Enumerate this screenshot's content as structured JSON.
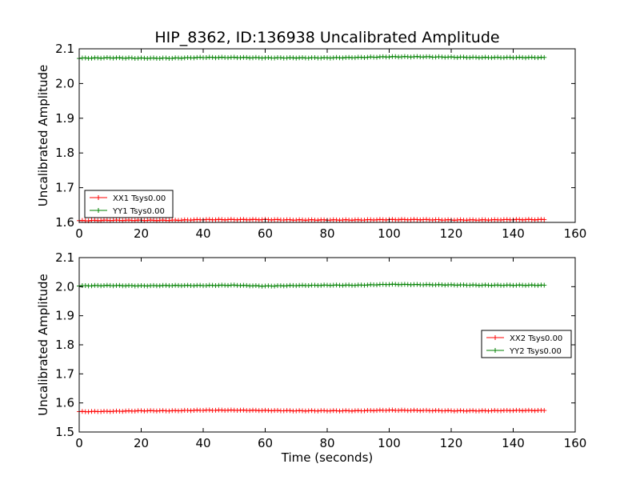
{
  "figure": {
    "title": "HIP_8362, ID:136938 Uncalibrated Amplitude",
    "xlabel": "Time (seconds)"
  },
  "colors": {
    "xx": "#ff0000",
    "yy": "#008000",
    "axes": "#000000",
    "background": "#ffffff"
  },
  "chart_data": [
    {
      "type": "line",
      "title": "HIP_8362, ID:136938 Uncalibrated Amplitude",
      "xlabel": "",
      "ylabel": "Uncalibrated Amplitude",
      "xlim": [
        0,
        160
      ],
      "ylim": [
        1.6,
        2.1
      ],
      "xticks": [
        "0",
        "20",
        "40",
        "60",
        "80",
        "100",
        "120",
        "140",
        "160"
      ],
      "yticks": [
        "1.6",
        "1.7",
        "1.8",
        "1.9",
        "2.0",
        "2.1"
      ],
      "grid": false,
      "marker": "+",
      "legend_position": "lower-left",
      "legend": [
        "XX1 Tsys0.00",
        "YY1 Tsys0.00"
      ],
      "x": [
        0,
        10,
        20,
        30,
        40,
        50,
        60,
        70,
        80,
        90,
        100,
        110,
        120,
        130,
        140,
        150
      ],
      "series": [
        {
          "name": "XX1 Tsys0.00",
          "color": "#ff0000",
          "values": [
            1.605,
            1.606,
            1.606,
            1.606,
            1.608,
            1.608,
            1.608,
            1.607,
            1.607,
            1.607,
            1.608,
            1.608,
            1.607,
            1.607,
            1.608,
            1.608
          ]
        },
        {
          "name": "YY1 Tsys0.00",
          "color": "#008000",
          "values": [
            2.073,
            2.074,
            2.073,
            2.073,
            2.075,
            2.075,
            2.074,
            2.074,
            2.074,
            2.075,
            2.077,
            2.077,
            2.076,
            2.075,
            2.075,
            2.075
          ]
        }
      ]
    },
    {
      "type": "line",
      "title": "",
      "xlabel": "Time (seconds)",
      "ylabel": "Uncalibrated Amplitude",
      "xlim": [
        0,
        160
      ],
      "ylim": [
        1.5,
        2.1
      ],
      "xticks": [
        "0",
        "20",
        "40",
        "60",
        "80",
        "100",
        "120",
        "140",
        "160"
      ],
      "yticks": [
        "1.5",
        "1.6",
        "1.7",
        "1.8",
        "1.9",
        "2.0",
        "2.1"
      ],
      "grid": false,
      "marker": "+",
      "legend_position": "center-right",
      "legend": [
        "XX2 Tsys0.00",
        "YY2 Tsys0.00"
      ],
      "x": [
        0,
        10,
        20,
        30,
        40,
        50,
        60,
        70,
        80,
        90,
        100,
        110,
        120,
        130,
        140,
        150
      ],
      "series": [
        {
          "name": "XX2 Tsys0.00",
          "color": "#ff0000",
          "values": [
            1.57,
            1.571,
            1.573,
            1.573,
            1.575,
            1.575,
            1.574,
            1.573,
            1.573,
            1.573,
            1.575,
            1.574,
            1.573,
            1.573,
            1.574,
            1.574
          ]
        },
        {
          "name": "YY2 Tsys0.00",
          "color": "#008000",
          "values": [
            2.003,
            2.004,
            2.003,
            2.004,
            2.004,
            2.005,
            2.002,
            2.004,
            2.005,
            2.005,
            2.008,
            2.007,
            2.006,
            2.005,
            2.005,
            2.005
          ]
        }
      ]
    }
  ]
}
